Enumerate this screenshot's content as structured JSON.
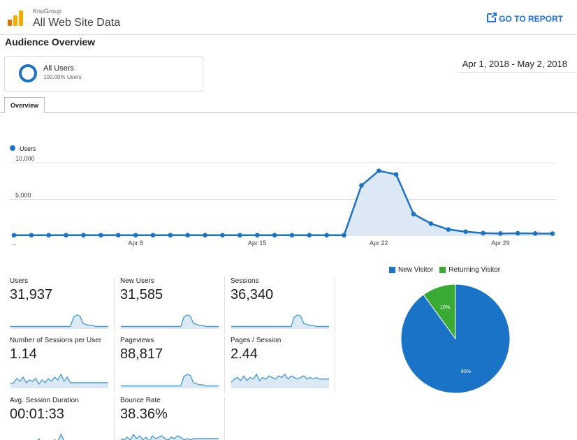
{
  "header": {
    "org": "KnuGroup",
    "property": "All Web Site Data",
    "go_to_report": "GO TO REPORT"
  },
  "section_title": "Audience Overview",
  "segment": {
    "name": "All Users",
    "sub": "100.00% Users"
  },
  "date_range": "Apr 1, 2018 - May 2, 2018",
  "tab": "Overview",
  "colors": {
    "primary": "#1a73c7",
    "returning": "#3aaa35",
    "fill": "#dce9f5",
    "link": "#1a73e8"
  },
  "chart_data": [
    {
      "type": "area",
      "series": [
        {
          "name": "Users",
          "values": [
            120,
            120,
            120,
            120,
            120,
            120,
            120,
            120,
            120,
            120,
            120,
            120,
            120,
            120,
            120,
            120,
            120,
            120,
            120,
            120,
            6900,
            8900,
            8400,
            3000,
            1700,
            900,
            600,
            400,
            350,
            380,
            350,
            330
          ]
        }
      ],
      "x_tick_labels": [
        "...",
        "Apr 8",
        "Apr 15",
        "Apr 22",
        "Apr 29"
      ],
      "x_tick_index": [
        0,
        7,
        14,
        21,
        28
      ],
      "y_tick_labels": [
        "10,000",
        "5,000"
      ],
      "y_tick_values": [
        10000,
        5000
      ],
      "ylim": [
        0,
        10000
      ],
      "legend_position": "top-left",
      "grid": true
    },
    {
      "type": "pie",
      "slices": [
        {
          "name": "New Visitor",
          "value": 90,
          "label": "90%",
          "color": "#1a73c7"
        },
        {
          "name": "Returning Visitor",
          "value": 10,
          "label": "10%",
          "color": "#3aaa35"
        }
      ],
      "legend_position": "top"
    }
  ],
  "metrics": [
    {
      "label": "Users",
      "value": "31,937",
      "spark": [
        1,
        1,
        1,
        1,
        1,
        1,
        1,
        1,
        1,
        1,
        1,
        1,
        1,
        1,
        1,
        1,
        1,
        1,
        1,
        1,
        10,
        12,
        11,
        4,
        3,
        2,
        2,
        1,
        1,
        1,
        1,
        1
      ]
    },
    {
      "label": "New Users",
      "value": "31,585",
      "spark": [
        1,
        1,
        1,
        1,
        1,
        1,
        1,
        1,
        1,
        1,
        1,
        1,
        1,
        1,
        1,
        1,
        1,
        1,
        1,
        1,
        10,
        12,
        11,
        4,
        3,
        2,
        2,
        1,
        1,
        1,
        1,
        1
      ]
    },
    {
      "label": "Sessions",
      "value": "36,340",
      "spark": [
        1,
        1,
        1,
        1,
        1,
        1,
        1,
        1,
        1,
        1,
        1,
        1,
        1,
        1,
        1,
        1,
        1,
        1,
        1,
        1,
        10,
        12,
        11,
        4,
        3,
        2,
        2,
        1,
        1,
        1,
        1,
        1
      ]
    },
    {
      "label": "Number of Sessions per User",
      "value": "1.14",
      "spark": [
        2,
        3,
        6,
        4,
        7,
        3,
        5,
        4,
        6,
        2,
        5,
        3,
        6,
        4,
        7,
        5,
        9,
        4,
        7,
        3,
        3,
        3,
        3,
        3,
        3,
        3,
        3,
        3,
        3,
        3,
        3,
        3
      ]
    },
    {
      "label": "Pageviews",
      "value": "88,817",
      "spark": [
        1,
        1,
        1,
        1,
        1,
        1,
        1,
        1,
        1,
        1,
        1,
        1,
        1,
        1,
        1,
        1,
        1,
        1,
        1,
        1,
        10,
        12,
        11,
        4,
        3,
        2,
        2,
        1,
        1,
        1,
        1,
        1
      ]
    },
    {
      "label": "Pages / Session",
      "value": "2.44",
      "spark": [
        3,
        5,
        6,
        4,
        7,
        4,
        6,
        5,
        8,
        4,
        6,
        5,
        7,
        6,
        5,
        7,
        6,
        8,
        5,
        7,
        6,
        5,
        6,
        7,
        5,
        6,
        5,
        6,
        5,
        5,
        5,
        5
      ]
    },
    {
      "label": "Avg. Session Duration",
      "value": "00:01:33",
      "spark": [
        3,
        5,
        4,
        6,
        5,
        7,
        4,
        6,
        5,
        9,
        5,
        7,
        6,
        5,
        8,
        6,
        14,
        7,
        5,
        6,
        4,
        5,
        4,
        4,
        3,
        3,
        3,
        3,
        3,
        3,
        3,
        3
      ]
    },
    {
      "label": "Bounce Rate",
      "value": "38.36%",
      "spark": [
        6,
        5,
        7,
        5,
        9,
        6,
        8,
        5,
        7,
        4,
        8,
        6,
        7,
        8,
        6,
        5,
        7,
        6,
        8,
        7,
        5,
        6,
        5,
        6,
        6,
        6,
        6,
        6,
        6,
        6,
        6,
        6
      ]
    }
  ]
}
